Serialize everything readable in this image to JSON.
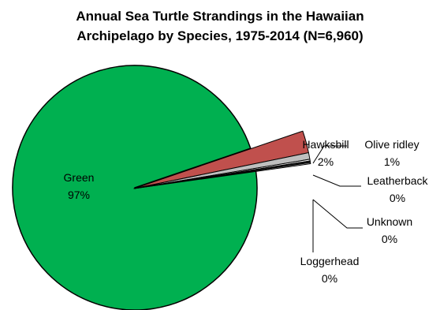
{
  "chart_data": {
    "type": "pie",
    "title_lines": [
      "Annual Sea Turtle Strandings in the Hawaiian",
      "Archipelago by Species, 1975-2014 (N=6,960)"
    ],
    "slices": [
      {
        "label": "Green",
        "value": 97,
        "pct_label": "97%",
        "color": "#00b050",
        "exploded": false
      },
      {
        "label": "Hawksbill",
        "value": 2,
        "pct_label": "2%",
        "color": "#c0504d",
        "exploded": true
      },
      {
        "label": "Olive ridley",
        "value": 0.6,
        "pct_label": "1%",
        "color": "#bfbfbf",
        "exploded": true
      },
      {
        "label": "Leatherback",
        "value": 0.15,
        "pct_label": "0%",
        "color": "#ffffff",
        "exploded": true
      },
      {
        "label": "Unknown",
        "value": 0.15,
        "pct_label": "0%",
        "color": "#1f1f1f",
        "exploded": true
      },
      {
        "label": "Loggerhead",
        "value": 0.1,
        "pct_label": "0%",
        "color": "#ffffff",
        "exploded": true
      }
    ],
    "legend": "none"
  }
}
